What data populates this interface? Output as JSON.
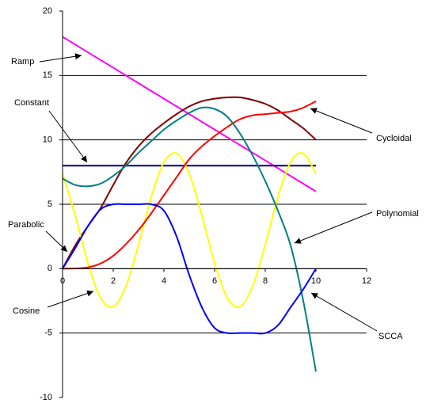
{
  "chart_data": {
    "type": "line",
    "x": [
      0,
      0.5,
      1,
      1.5,
      2,
      2.5,
      3,
      3.5,
      4,
      4.5,
      5,
      5.5,
      6,
      6.5,
      7,
      7.5,
      8,
      8.5,
      9,
      9.5,
      10
    ],
    "series": [
      {
        "name": "Ramp",
        "color": "#ff00ff",
        "values": [
          18,
          17.4,
          16.8,
          16.2,
          15.6,
          15,
          14.4,
          13.8,
          13.2,
          12.6,
          12,
          11.4,
          10.8,
          10.2,
          9.6,
          9,
          8.4,
          7.8,
          7.2,
          6.6,
          6
        ]
      },
      {
        "name": "Constant",
        "color": "#000080",
        "values": [
          8,
          8,
          8,
          8,
          8,
          8,
          8,
          8,
          8,
          8,
          8,
          8,
          8,
          8,
          8,
          8,
          8,
          8,
          8,
          8,
          8
        ]
      },
      {
        "name": "Parabolic",
        "color": "#800000",
        "values": [
          0,
          1.8,
          3.3,
          4.7,
          6.5,
          8.2,
          9.5,
          10.5,
          11.3,
          12,
          12.6,
          13,
          13.2,
          13.3,
          13.3,
          13.1,
          12.8,
          12.3,
          11.6,
          10.9,
          10
        ]
      },
      {
        "name": "Cosine",
        "color": "#ffff00",
        "values": [
          7.37,
          4.12,
          0.44,
          -2.26,
          -2.95,
          -1.37,
          1.88,
          5.56,
          8.26,
          8.95,
          7.37,
          4.12,
          0.44,
          -2.26,
          -2.95,
          -1.37,
          1.88,
          5.56,
          8.26,
          8.95,
          7.37
        ]
      },
      {
        "name": "Cycloidal",
        "color": "#ff0000",
        "values": [
          0,
          0.02,
          0.1,
          0.4,
          1,
          1.9,
          3,
          4.3,
          5.7,
          7.1,
          8.5,
          9.5,
          10.3,
          11,
          11.6,
          11.9,
          12,
          12.1,
          12.2,
          12.5,
          13
        ]
      },
      {
        "name": "Polynomial",
        "color": "#008080",
        "values": [
          7,
          6.5,
          6.4,
          6.6,
          7.2,
          8,
          9,
          9.9,
          10.8,
          11.5,
          12.1,
          12.5,
          12.4,
          11.8,
          10.5,
          8.8,
          6.8,
          4.5,
          1.8,
          -2.5,
          -8
        ]
      },
      {
        "name": "SCCA",
        "color": "#0000ff",
        "values": [
          0,
          1.6,
          3.3,
          4.6,
          5,
          5,
          5,
          5,
          4.5,
          2.5,
          -0.5,
          -3,
          -4.6,
          -5,
          -5,
          -5,
          -5,
          -4.4,
          -3,
          -1.6,
          0
        ]
      }
    ],
    "xlim": [
      0,
      12
    ],
    "xticks": [
      0,
      2,
      4,
      6,
      8,
      10,
      12
    ],
    "ylim": [
      -10,
      20
    ],
    "yticks": [
      -10,
      -5,
      0,
      5,
      10,
      15,
      20
    ],
    "grid": true
  }
}
